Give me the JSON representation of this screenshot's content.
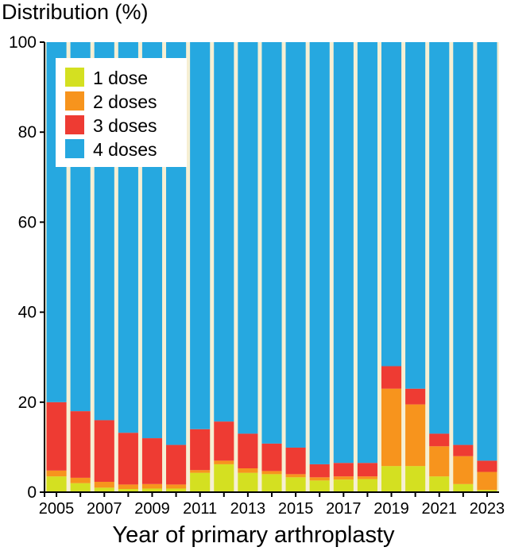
{
  "chart_data": {
    "type": "bar",
    "stacked": true,
    "ylabel": "Distribution (%)",
    "xlabel": "Year of primary arthroplasty",
    "ylim": [
      0,
      100
    ],
    "yticks": [
      "0",
      "20",
      "40",
      "60",
      "80",
      "100"
    ],
    "categories": [
      "2005",
      "2006",
      "2007",
      "2008",
      "2009",
      "2010",
      "2011",
      "2012",
      "2013",
      "2014",
      "2015",
      "2016",
      "2017",
      "2018",
      "2019",
      "2020",
      "2021",
      "2022",
      "2023"
    ],
    "xtick_labels": [
      "2005",
      "",
      "2007",
      "",
      "2009",
      "",
      "2011",
      "",
      "2013",
      "",
      "2015",
      "",
      "2017",
      "",
      "2019",
      "",
      "2021",
      "",
      "2023"
    ],
    "legend_position": "top-left",
    "series": [
      {
        "name": "1 dose",
        "color": "#d4e021",
        "values": [
          3.5,
          2.0,
          1.0,
          0.7,
          0.8,
          0.8,
          4.3,
          6.2,
          4.3,
          4.0,
          3.3,
          2.6,
          2.8,
          2.9,
          5.8,
          5.8,
          3.5,
          1.8,
          0.5
        ]
      },
      {
        "name": "2 doses",
        "color": "#f7941d",
        "values": [
          1.3,
          1.2,
          1.3,
          1.0,
          1.0,
          0.9,
          0.6,
          0.8,
          1.0,
          0.7,
          0.7,
          0.7,
          0.7,
          0.6,
          17.2,
          13.7,
          6.7,
          6.2,
          4.0
        ]
      },
      {
        "name": "3 doses",
        "color": "#ee3b33",
        "values": [
          15.2,
          14.8,
          13.7,
          11.5,
          10.2,
          8.8,
          9.1,
          8.7,
          7.7,
          6.1,
          5.9,
          2.9,
          3.0,
          3.0,
          5.0,
          3.5,
          2.8,
          2.5,
          2.5
        ]
      },
      {
        "name": "4 doses",
        "color": "#26a8e0",
        "values": [
          80.0,
          82.0,
          84.0,
          86.8,
          88.0,
          89.5,
          86.0,
          84.3,
          87.0,
          89.2,
          90.1,
          93.8,
          93.5,
          93.5,
          72.0,
          77.0,
          87.0,
          89.5,
          93.0
        ]
      }
    ]
  }
}
